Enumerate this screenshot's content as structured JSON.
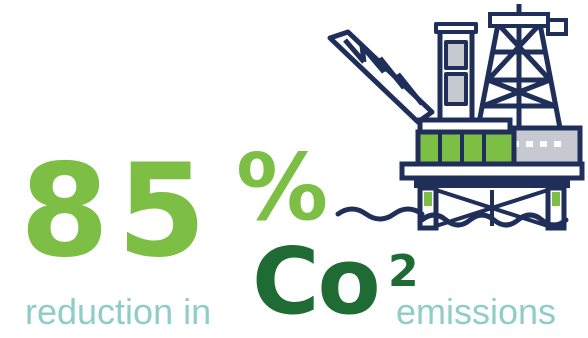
{
  "headline": {
    "number": "85",
    "percent_sign": "%",
    "prefix_text": "reduction in",
    "molecule": "Co",
    "molecule_superscript": "2",
    "suffix_text": "emissions"
  },
  "icon": {
    "name": "offshore-oil-rig-icon"
  },
  "colors": {
    "number_green": "#7cbf44",
    "co2_dark_green": "#1e6b34",
    "caption_teal": "#8ecdc9",
    "rig_navy": "#1f2f5a",
    "rig_grey": "#c6c9cf",
    "rig_green": "#7cbf44"
  }
}
